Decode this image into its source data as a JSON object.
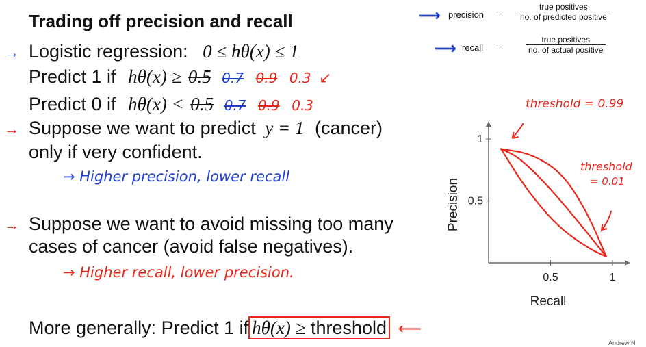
{
  "slide": {
    "title": "Trading off precision and recall",
    "definitions": {
      "precision_label": "precision",
      "recall_label": "recall",
      "equals": "=",
      "precision_num": "true positives",
      "precision_den": "no. of predicted positive",
      "recall_num": "true positives",
      "recall_den": "no. of actual positive"
    },
    "bullets": {
      "logistic_prefix": "Logistic regression:",
      "logistic_math": "0 ≤ hθ(x) ≤ 1",
      "predict1_prefix": "Predict 1 if",
      "predict1_math": "hθ(x) ≥",
      "predict0_prefix": "Predict 0 if",
      "predict0_math": "hθ(x) <",
      "threshold_values": [
        "0.5",
        "0.7",
        "0.9",
        "0.3"
      ],
      "suppose1_line1_a": "Suppose we want to predict",
      "suppose1_math": "y = 1",
      "suppose1_line1_b": "(cancer)",
      "suppose1_line2": "only if very confident.",
      "suppose1_note": "→ Higher precision, lower recall",
      "suppose2_line1": "Suppose we want to avoid missing too many",
      "suppose2_line2": "cases of cancer (avoid false negatives).",
      "suppose2_note": "→ Higher recall, lower precision.",
      "general_prefix": "More generally: Predict 1 if",
      "general_math": "hθ(x) ≥",
      "general_word": "threshold"
    },
    "annotations": {
      "threshold_high": "threshold = 0.99",
      "threshold_low_1": "threshold",
      "threshold_low_2": "= 0.01"
    },
    "footer": "Andrew N"
  },
  "chart_data": {
    "type": "line",
    "xlabel": "Recall",
    "ylabel": "Precision",
    "x_ticks": [
      "0.5",
      "1"
    ],
    "y_ticks": [
      "1",
      "0.5"
    ],
    "xlim": [
      0,
      1.05
    ],
    "ylim": [
      0,
      1.05
    ],
    "series": [
      {
        "x": [
          0.1,
          0.25,
          0.5,
          0.75,
          0.95
        ],
        "y": [
          0.92,
          0.85,
          0.6,
          0.3,
          0.05
        ]
      },
      {
        "x": [
          0.1,
          0.3,
          0.55,
          0.8,
          0.95
        ],
        "y": [
          0.92,
          0.6,
          0.3,
          0.12,
          0.05
        ]
      },
      {
        "x": [
          0.1,
          0.35,
          0.6,
          0.8,
          0.95
        ],
        "y": [
          0.92,
          0.88,
          0.72,
          0.4,
          0.05
        ]
      }
    ],
    "colors": {
      "axis": "#666666",
      "curve": "#e8271d"
    }
  }
}
